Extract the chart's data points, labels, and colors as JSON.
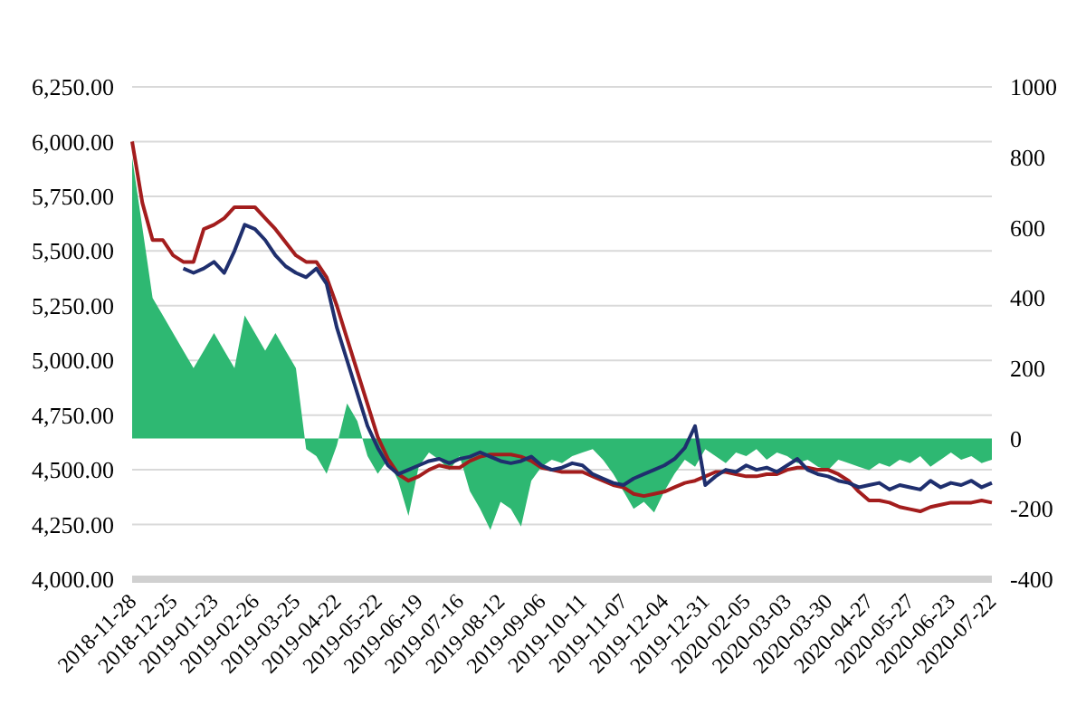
{
  "chart_data": {
    "type": "line",
    "categories": [
      "2018-11-28",
      null,
      null,
      null,
      "2018-12-25",
      null,
      null,
      null,
      "2019-01-23",
      null,
      null,
      null,
      "2019-02-26",
      null,
      null,
      null,
      "2019-03-25",
      null,
      null,
      null,
      "2019-04-22",
      null,
      null,
      null,
      "2019-05-22",
      null,
      null,
      null,
      "2019-06-19",
      null,
      null,
      null,
      "2019-07-16",
      null,
      null,
      null,
      "2019-08-12",
      null,
      null,
      null,
      "2019-09-06",
      null,
      null,
      null,
      "2019-10-11",
      null,
      null,
      null,
      "2019-11-07",
      null,
      null,
      null,
      "2019-12-04",
      null,
      null,
      null,
      "2019-12-31",
      null,
      null,
      null,
      "2020-02-05",
      null,
      null,
      null,
      "2020-03-03",
      null,
      null,
      null,
      "2020-03-30",
      null,
      null,
      null,
      "2020-04-27",
      null,
      null,
      null,
      "2020-05-27",
      null,
      null,
      null,
      "2020-06-23",
      null,
      null,
      null,
      "2020-07-22"
    ],
    "series": [
      {
        "type": "area",
        "axis": "y2",
        "color": "#2eb872",
        "values": [
          800,
          600,
          400,
          350,
          300,
          250,
          200,
          250,
          300,
          250,
          200,
          350,
          300,
          250,
          300,
          250,
          200,
          -30,
          -50,
          -100,
          -20,
          100,
          50,
          -50,
          -100,
          -60,
          -120,
          -220,
          -80,
          -40,
          -60,
          -90,
          -50,
          -150,
          -200,
          -260,
          -180,
          -200,
          -250,
          -120,
          -80,
          -60,
          -70,
          -50,
          -40,
          -30,
          -60,
          -100,
          -150,
          -200,
          -180,
          -210,
          -150,
          -100,
          -60,
          -80,
          -30,
          -50,
          -70,
          -40,
          -50,
          -30,
          -60,
          -40,
          -50,
          -70,
          -60,
          -80,
          -90,
          -60,
          -70,
          -80,
          -90,
          -70,
          -80,
          -60,
          -70,
          -50,
          -80,
          -60,
          -40,
          -60,
          -50,
          -70,
          -60
        ]
      },
      {
        "color": "#a31d1d",
        "values": [
          6000,
          5720,
          5550,
          5550,
          5480,
          5450,
          5450,
          5600,
          5620,
          5650,
          5700,
          5700,
          5700,
          5650,
          5600,
          5540,
          5480,
          5450,
          5450,
          5380,
          5250,
          5100,
          4950,
          4800,
          4650,
          4550,
          4480,
          4450,
          4470,
          4500,
          4520,
          4510,
          4510,
          4540,
          4560,
          4570,
          4570,
          4570,
          4560,
          4540,
          4510,
          4500,
          4490,
          4490,
          4490,
          4470,
          4450,
          4430,
          4420,
          4390,
          4380,
          4390,
          4400,
          4420,
          4440,
          4450,
          4470,
          4490,
          4490,
          4480,
          4470,
          4470,
          4480,
          4480,
          4500,
          4510,
          4510,
          4500,
          4500,
          4480,
          4450,
          4400,
          4360,
          4360,
          4350,
          4330,
          4320,
          4310,
          4330,
          4340,
          4350,
          4350,
          4350,
          4360,
          4350
        ]
      },
      {
        "color": "#1f2f6e",
        "values": [
          null,
          null,
          null,
          null,
          null,
          5420,
          5400,
          5420,
          5450,
          5400,
          5500,
          5620,
          5600,
          5550,
          5480,
          5430,
          5400,
          5380,
          5420,
          5350,
          5150,
          5000,
          4850,
          4700,
          4600,
          4520,
          4480,
          4500,
          4520,
          4540,
          4550,
          4530,
          4550,
          4560,
          4580,
          4560,
          4540,
          4530,
          4540,
          4560,
          4520,
          4500,
          4510,
          4530,
          4520,
          4480,
          4460,
          4440,
          4430,
          4460,
          4480,
          4500,
          4520,
          4550,
          4600,
          4700,
          4430,
          4470,
          4500,
          4490,
          4520,
          4500,
          4510,
          4490,
          4520,
          4550,
          4500,
          4480,
          4470,
          4450,
          4440,
          4420,
          4430,
          4440,
          4410,
          4430,
          4420,
          4410,
          4450,
          4420,
          4440,
          4430,
          4450,
          4420,
          4440
        ]
      }
    ],
    "ylim": [
      4000,
      6250
    ],
    "yticks": [
      {
        "value": 4000,
        "label": "4,000.00"
      },
      {
        "value": 4250,
        "label": "4,250.00"
      },
      {
        "value": 4500,
        "label": "4,500.00"
      },
      {
        "value": 4750,
        "label": "4,750.00"
      },
      {
        "value": 5000,
        "label": "5,000.00"
      },
      {
        "value": 5250,
        "label": "5,250.00"
      },
      {
        "value": 5500,
        "label": "5,500.00"
      },
      {
        "value": 5750,
        "label": "5,750.00"
      },
      {
        "value": 6000,
        "label": "6,000.00"
      },
      {
        "value": 6250,
        "label": "6,250.00"
      }
    ],
    "y2lim": [
      -400,
      1000
    ],
    "y2ticks": [
      -400,
      -200,
      0,
      200,
      400,
      600,
      800,
      1000
    ],
    "grid": "y"
  }
}
